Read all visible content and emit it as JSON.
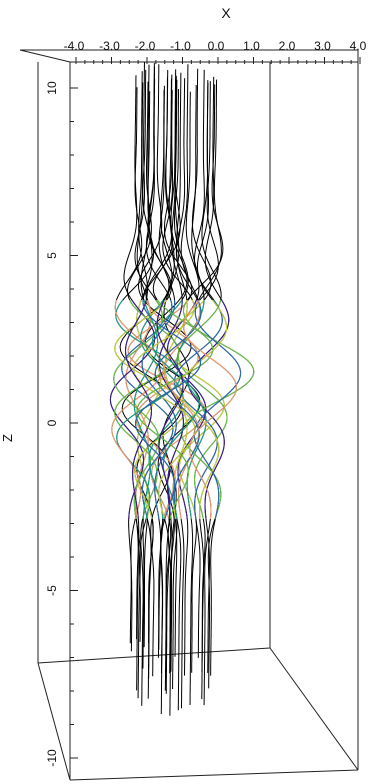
{
  "chart_data": {
    "type": "line",
    "projection": "3d-perspective",
    "title": "",
    "xlabel": "X",
    "ylabel": "",
    "zlabel": "Z",
    "xlim": [
      -4.0,
      4.0
    ],
    "zlim": [
      -10,
      10
    ],
    "x_ticks": [
      "-4.0",
      "-3.0",
      "-2.0",
      "-1.0",
      "0.0",
      "1.0",
      "2.0",
      "3.0",
      "4.0"
    ],
    "z_ticks": [
      "10",
      "5",
      "0",
      "-5",
      "-10"
    ],
    "grid": false,
    "legend": "none",
    "box": "wireframe",
    "series_description": "magnetic field lines, vertical (black) far from z=0, twisting and braiding near z=0 with colors from purple through green to orange",
    "colors": {
      "straight_lines": "#000000",
      "twist_purple": "#3b1d8f",
      "twist_blue": "#2a6db5",
      "twist_teal": "#1fa187",
      "twist_green": "#6cc24a",
      "twist_yellow": "#c8d43a",
      "twist_orange": "#f0a070"
    }
  }
}
